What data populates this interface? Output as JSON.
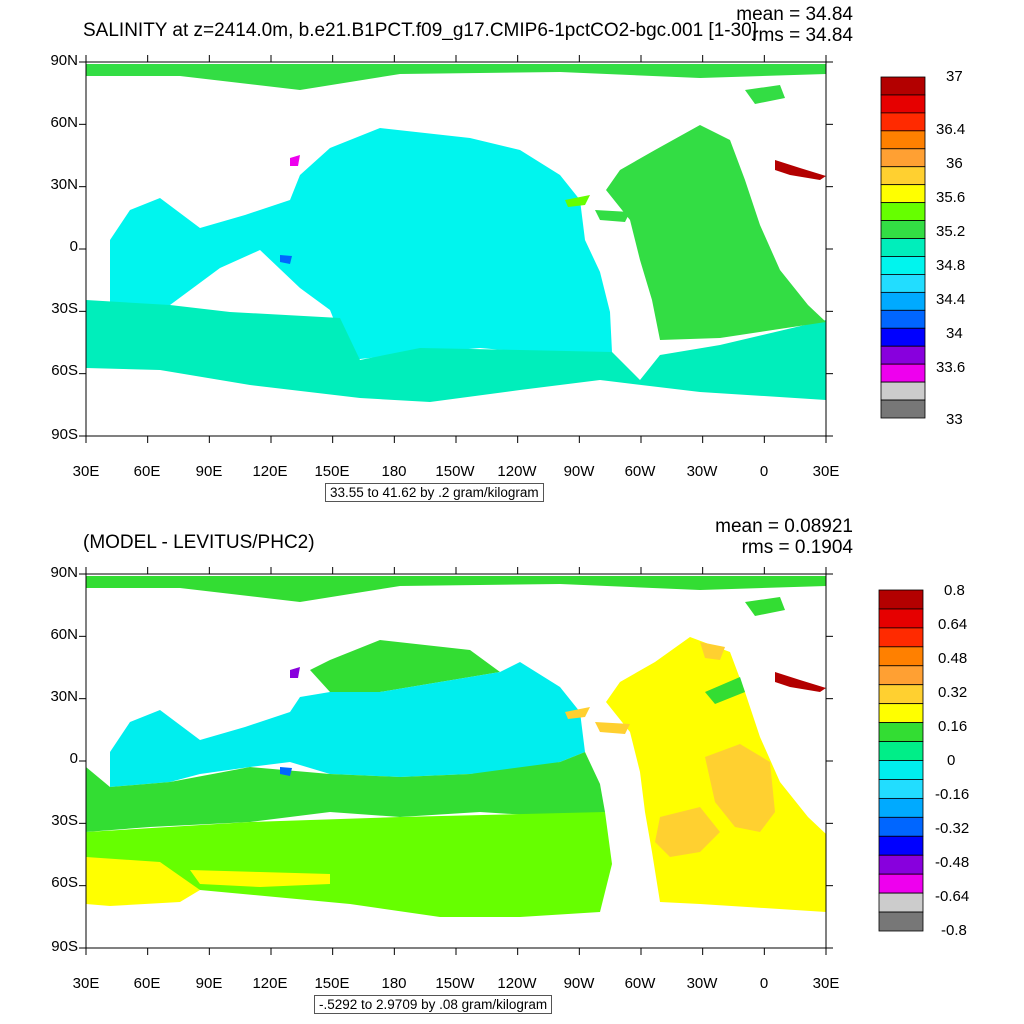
{
  "top": {
    "title": "SALINITY at z=2414.0m, b.e21.B1PCT.f09_g17.CMIP6-1pctCO2-bgc.001 [1-30]",
    "mean": "mean = 34.84",
    "rms": "rms = 34.84",
    "info": "33.55 to 41.62 by .2 gram/kilogram",
    "colorbar_labels": [
      "37",
      "36.4",
      "36",
      "35.6",
      "35.2",
      "34.8",
      "34.4",
      "34",
      "33.6",
      "33"
    ],
    "colorbar_colors": [
      "#b30000",
      "#e60000",
      "#ff2a00",
      "#ff8000",
      "#ffa033",
      "#ffd030",
      "#ffff00",
      "#66ff00",
      "#33dd44",
      "#00eebb",
      "#00f5ee",
      "#22ddff",
      "#00aaff",
      "#0066ff",
      "#0000ff",
      "#8800dd",
      "#ee00ee",
      "#cccccc",
      "#777777"
    ]
  },
  "bottom": {
    "title": "(MODEL - LEVITUS/PHC2)",
    "mean": "mean = 0.08921",
    "rms": "rms = 0.1904",
    "info": "-.5292 to 2.9709 by .08 gram/kilogram",
    "colorbar_labels": [
      "0.8",
      "0.64",
      "0.48",
      "0.32",
      "0.16",
      "0",
      "-0.16",
      "-0.32",
      "-0.48",
      "-0.64",
      "-0.8"
    ],
    "colorbar_colors": [
      "#b30000",
      "#e60000",
      "#ff2a00",
      "#ff8000",
      "#ffa033",
      "#ffd030",
      "#ffff00",
      "#33dd33",
      "#00ee88",
      "#00eeee",
      "#22ddff",
      "#00aaff",
      "#0066ff",
      "#0000ff",
      "#8800dd",
      "#ee00ee",
      "#cccccc",
      "#777777"
    ]
  },
  "axes": {
    "lat_labels": [
      "90N",
      "60N",
      "30N",
      "0",
      "30S",
      "60S",
      "90S"
    ],
    "lon_labels": [
      "30E",
      "60E",
      "90E",
      "120E",
      "150E",
      "180",
      "150W",
      "120W",
      "90W",
      "60W",
      "30W",
      "0",
      "30E"
    ]
  }
}
